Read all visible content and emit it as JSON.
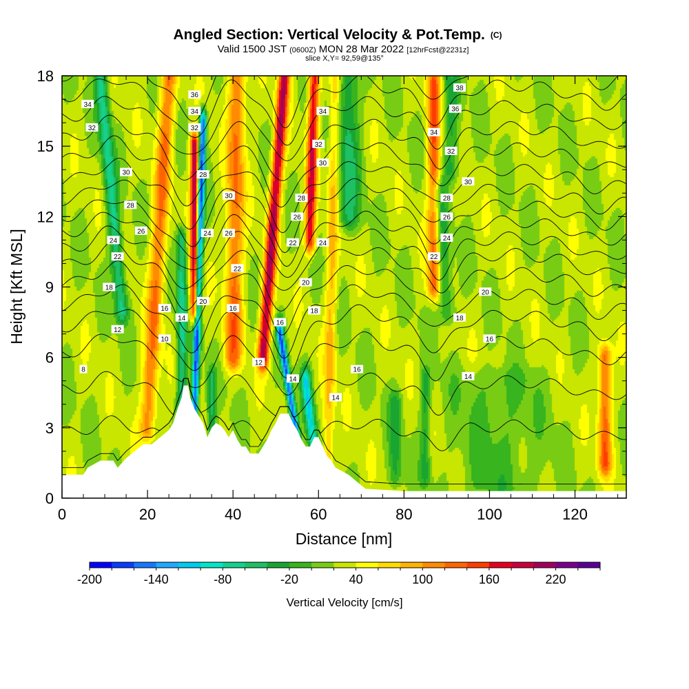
{
  "title": "Angled Section: Vertical Velocity & Pot.Temp.",
  "title_suffix": "(C)",
  "subtitle_pre": "Valid 1500 JST ",
  "subtitle_z": "(0600Z)",
  "subtitle_mid": " MON 28 Mar 2022 ",
  "subtitle_fcst": "[12hrFcst@2231z]",
  "subtitle2": "slice X,Y= 92,59@135°",
  "chart_data": {
    "type": "heatmap",
    "xlabel": "Distance [nm]",
    "ylabel": "Height [Kft MSL]",
    "xlim": [
      0,
      132
    ],
    "ylim": [
      0,
      18
    ],
    "x_ticks": [
      0,
      20,
      40,
      60,
      80,
      100,
      120
    ],
    "y_ticks": [
      0,
      3,
      6,
      9,
      12,
      15,
      18
    ],
    "colorbar": {
      "label": "Vertical Velocity [cm/s]",
      "tick_labels": [
        "-200",
        "-140",
        "-80",
        "-20",
        "40",
        "100",
        "160",
        "220"
      ],
      "levels": [
        -200,
        -180,
        -160,
        -140,
        -120,
        -100,
        -80,
        -60,
        -40,
        -20,
        0,
        20,
        40,
        60,
        80,
        100,
        120,
        140,
        160,
        180,
        200,
        220,
        240
      ],
      "colors": [
        "#0000ff",
        "#0a3cff",
        "#1478ff",
        "#1eaaff",
        "#00ccee",
        "#00e6c8",
        "#14d28c",
        "#1ec064",
        "#19a532",
        "#37b41e",
        "#78cd14",
        "#c8e600",
        "#ffff00",
        "#ffdc00",
        "#ffb400",
        "#ff8c00",
        "#ff6400",
        "#ff3c00",
        "#e6001e",
        "#c8003c",
        "#a0005a",
        "#78008c",
        "#5a0096"
      ]
    },
    "vertical_velocity_field": {
      "background": 25,
      "updraft_bands": [
        {
          "x_top": 52,
          "x_bottom": 47,
          "z_top": 18,
          "z_bottom": 6,
          "peak": 175,
          "width": 1.3
        },
        {
          "x_top": 59,
          "x_bottom": 58,
          "z_top": 18,
          "z_bottom": 11,
          "peak": 150,
          "width": 1.2
        },
        {
          "x_top": 31,
          "x_bottom": 31,
          "z_top": 15,
          "z_bottom": 8,
          "peak": 180,
          "width": 1.0
        },
        {
          "x_top": 25,
          "x_bottom": 20,
          "z_top": 18,
          "z_bottom": 3,
          "peak": 95,
          "width": 1.8
        },
        {
          "x_top": 41,
          "x_bottom": 40,
          "z_top": 18,
          "z_bottom": 6,
          "peak": 100,
          "width": 2.0
        },
        {
          "x_top": 87,
          "x_bottom": 87,
          "z_top": 18,
          "z_bottom": 9,
          "peak": 110,
          "width": 1.5
        },
        {
          "x_top": 127,
          "x_bottom": 127,
          "z_top": 6,
          "z_bottom": 1.5,
          "peak": 110,
          "width": 1.5
        },
        {
          "x_top": 64,
          "x_bottom": 62,
          "z_top": 18,
          "z_bottom": 0,
          "peak": 60,
          "width": 1.3
        }
      ],
      "downdraft_bands": [
        {
          "x_top": 33,
          "x_bottom": 31,
          "z_top": 16,
          "z_bottom": 3.5,
          "peak": -190,
          "width": 0.8
        },
        {
          "x_top": 51,
          "x_bottom": 55,
          "z_top": 7,
          "z_bottom": 2.5,
          "peak": -180,
          "width": 0.8
        },
        {
          "x_top": 9,
          "x_bottom": 14,
          "z_top": 18,
          "z_bottom": 8,
          "peak": -90,
          "width": 1.5
        },
        {
          "x_top": 28,
          "x_bottom": 28,
          "z_top": 11,
          "z_bottom": 3,
          "peak": -90,
          "width": 1.2
        },
        {
          "x_top": 35,
          "x_bottom": 35,
          "z_top": 5,
          "z_bottom": 3,
          "peak": -60,
          "width": 1.0
        },
        {
          "x_top": 57,
          "x_bottom": 59,
          "z_top": 5,
          "z_bottom": 2,
          "peak": -120,
          "width": 1.2
        },
        {
          "x_top": 67,
          "x_bottom": 67,
          "z_top": 18,
          "z_bottom": 12,
          "peak": -70,
          "width": 2.5
        },
        {
          "x_top": 88,
          "x_bottom": 90,
          "z_top": 13,
          "z_bottom": 8,
          "peak": -60,
          "width": 1.8
        },
        {
          "x_top": 91,
          "x_bottom": 91,
          "z_top": 18,
          "z_bottom": 14,
          "peak": -50,
          "width": 2.0
        },
        {
          "x_top": 78,
          "x_bottom": 78,
          "z_top": 4,
          "z_bottom": 1,
          "peak": -50,
          "width": 1.5
        },
        {
          "x_top": 85,
          "x_bottom": 85,
          "z_top": 5,
          "z_bottom": 1,
          "peak": -50,
          "width": 1.2
        },
        {
          "x_top": 102,
          "x_bottom": 102,
          "z_top": 5,
          "z_bottom": 0.5,
          "peak": -30,
          "width": 10.0
        }
      ]
    },
    "terrain_height_kft": [
      [
        0,
        1.0
      ],
      [
        5,
        1.0
      ],
      [
        6,
        1.3
      ],
      [
        9,
        1.6
      ],
      [
        12,
        1.6
      ],
      [
        13,
        1.3
      ],
      [
        15,
        1.7
      ],
      [
        17,
        2.0
      ],
      [
        19,
        2.3
      ],
      [
        21,
        2.3
      ],
      [
        23,
        2.6
      ],
      [
        25,
        2.9
      ],
      [
        26,
        3.2
      ],
      [
        27,
        3.8
      ],
      [
        28,
        4.3
      ],
      [
        28.5,
        4.8
      ],
      [
        29.5,
        4.8
      ],
      [
        30,
        4.3
      ],
      [
        31,
        3.8
      ],
      [
        32,
        3.5
      ],
      [
        33,
        3.2
      ],
      [
        34,
        2.6
      ],
      [
        35,
        3.0
      ],
      [
        36,
        3.2
      ],
      [
        37,
        3.1
      ],
      [
        38,
        2.9
      ],
      [
        39,
        2.6
      ],
      [
        40,
        2.9
      ],
      [
        41,
        2.5
      ],
      [
        42,
        2.2
      ],
      [
        43,
        2.2
      ],
      [
        44,
        1.9
      ],
      [
        46,
        1.9
      ],
      [
        47,
        2.2
      ],
      [
        48,
        2.5
      ],
      [
        49,
        2.9
      ],
      [
        50,
        3.2
      ],
      [
        51,
        3.6
      ],
      [
        53,
        3.6
      ],
      [
        54,
        3.2
      ],
      [
        55,
        2.9
      ],
      [
        56,
        2.5
      ],
      [
        57,
        2.2
      ],
      [
        58,
        2.2
      ],
      [
        59,
        2.6
      ],
      [
        60,
        2.6
      ],
      [
        61,
        2.2
      ],
      [
        62,
        1.8
      ],
      [
        63,
        1.6
      ],
      [
        64,
        1.3
      ],
      [
        67,
        1.0
      ],
      [
        69,
        0.7
      ],
      [
        71,
        0.4
      ],
      [
        80,
        0.3
      ],
      [
        132,
        0.3
      ]
    ],
    "theta_contours": {
      "levels_c": [
        4,
        6,
        8,
        10,
        12,
        14,
        16,
        18,
        20,
        22,
        24,
        26,
        28,
        30,
        32,
        34,
        36,
        38
      ],
      "base_height_kft": [
        0.2,
        2.8,
        4.6,
        6.2,
        7.3,
        8.2,
        9.1,
        9.9,
        10.6,
        11.3,
        12.0,
        12.7,
        13.5,
        14.4,
        15.3,
        16.2,
        17.1,
        18.0
      ],
      "labels": [
        {
          "text": "34",
          "x": 6,
          "z": 16.8
        },
        {
          "text": "32",
          "x": 7,
          "z": 15.8
        },
        {
          "text": "30",
          "x": 15,
          "z": 13.9
        },
        {
          "text": "28",
          "x": 16,
          "z": 12.5
        },
        {
          "text": "26",
          "x": 18.5,
          "z": 11.4
        },
        {
          "text": "24",
          "x": 12,
          "z": 11.0
        },
        {
          "text": "22",
          "x": 13,
          "z": 10.3
        },
        {
          "text": "18",
          "x": 11,
          "z": 9.0
        },
        {
          "text": "16",
          "x": 24,
          "z": 8.1
        },
        {
          "text": "14",
          "x": 28,
          "z": 7.7
        },
        {
          "text": "12",
          "x": 13,
          "z": 7.2
        },
        {
          "text": "10",
          "x": 24,
          "z": 6.8
        },
        {
          "text": "8",
          "x": 5,
          "z": 5.5
        },
        {
          "text": "36",
          "x": 31,
          "z": 17.2
        },
        {
          "text": "34",
          "x": 31,
          "z": 16.5
        },
        {
          "text": "32",
          "x": 31,
          "z": 15.8
        },
        {
          "text": "28",
          "x": 33,
          "z": 13.8
        },
        {
          "text": "30",
          "x": 39,
          "z": 12.9
        },
        {
          "text": "24",
          "x": 34,
          "z": 11.3
        },
        {
          "text": "26",
          "x": 39,
          "z": 11.3
        },
        {
          "text": "22",
          "x": 41,
          "z": 9.8
        },
        {
          "text": "20",
          "x": 33,
          "z": 8.4
        },
        {
          "text": "16",
          "x": 40,
          "z": 8.1
        },
        {
          "text": "12",
          "x": 46,
          "z": 5.8
        },
        {
          "text": "34",
          "x": 61,
          "z": 16.5
        },
        {
          "text": "32",
          "x": 60,
          "z": 15.1
        },
        {
          "text": "30",
          "x": 61,
          "z": 14.3
        },
        {
          "text": "28",
          "x": 56,
          "z": 12.8
        },
        {
          "text": "26",
          "x": 55,
          "z": 12.0
        },
        {
          "text": "24",
          "x": 61,
          "z": 10.9
        },
        {
          "text": "22",
          "x": 54,
          "z": 10.9
        },
        {
          "text": "20",
          "x": 57,
          "z": 9.2
        },
        {
          "text": "18",
          "x": 59,
          "z": 8.0
        },
        {
          "text": "16",
          "x": 51,
          "z": 7.5
        },
        {
          "text": "14",
          "x": 54,
          "z": 5.1
        },
        {
          "text": "14",
          "x": 64,
          "z": 4.3
        },
        {
          "text": "16",
          "x": 69,
          "z": 5.5
        },
        {
          "text": "38",
          "x": 93,
          "z": 17.5
        },
        {
          "text": "36",
          "x": 92,
          "z": 16.6
        },
        {
          "text": "34",
          "x": 87,
          "z": 15.6
        },
        {
          "text": "32",
          "x": 91,
          "z": 14.8
        },
        {
          "text": "30",
          "x": 95,
          "z": 13.5
        },
        {
          "text": "28",
          "x": 90,
          "z": 12.8
        },
        {
          "text": "26",
          "x": 90,
          "z": 12.0
        },
        {
          "text": "24",
          "x": 90,
          "z": 11.1
        },
        {
          "text": "22",
          "x": 87,
          "z": 10.3
        },
        {
          "text": "20",
          "x": 99,
          "z": 8.8
        },
        {
          "text": "18",
          "x": 93,
          "z": 7.7
        },
        {
          "text": "16",
          "x": 100,
          "z": 6.8
        },
        {
          "text": "14",
          "x": 95,
          "z": 5.2
        }
      ]
    }
  }
}
